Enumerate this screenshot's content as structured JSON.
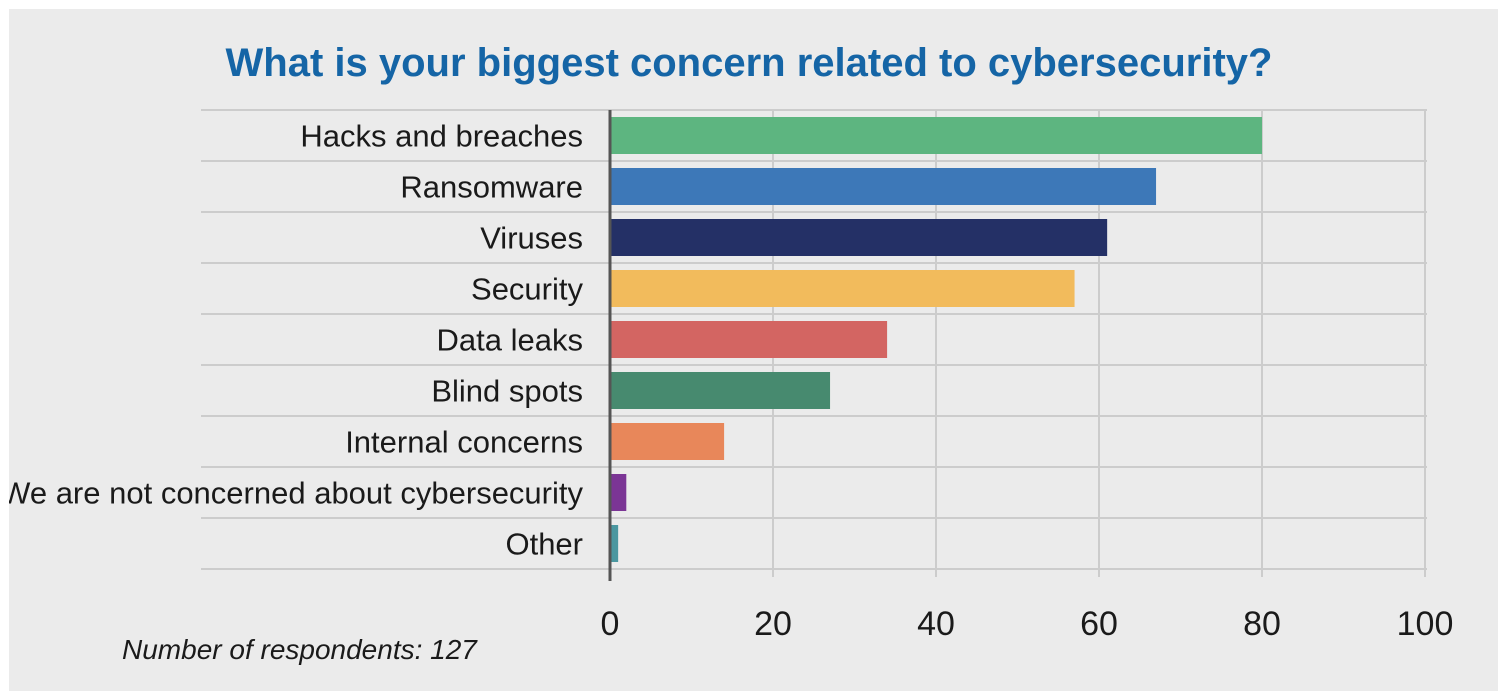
{
  "chart_data": {
    "type": "bar",
    "orientation": "horizontal",
    "title": "What is your biggest concern related to cybersecurity?",
    "categories": [
      "Hacks and breaches",
      "Ransomware",
      "Viruses",
      "Security",
      "Data leaks",
      "Blind spots",
      "Internal concerns",
      "We are not concerned about cybersecurity",
      "Other"
    ],
    "values": [
      80,
      67,
      61,
      57,
      34,
      27,
      14,
      2,
      1
    ],
    "colors": [
      "#5db580",
      "#3d78b8",
      "#243066",
      "#f2bb5c",
      "#d36562",
      "#478a6f",
      "#e8875a",
      "#7b3595",
      "#4a97a0"
    ],
    "xlim": [
      0,
      100
    ],
    "xticks": [
      "0",
      "20",
      "40",
      "60",
      "80",
      "100"
    ],
    "grid": true,
    "note": "Number of respondents: 127"
  }
}
